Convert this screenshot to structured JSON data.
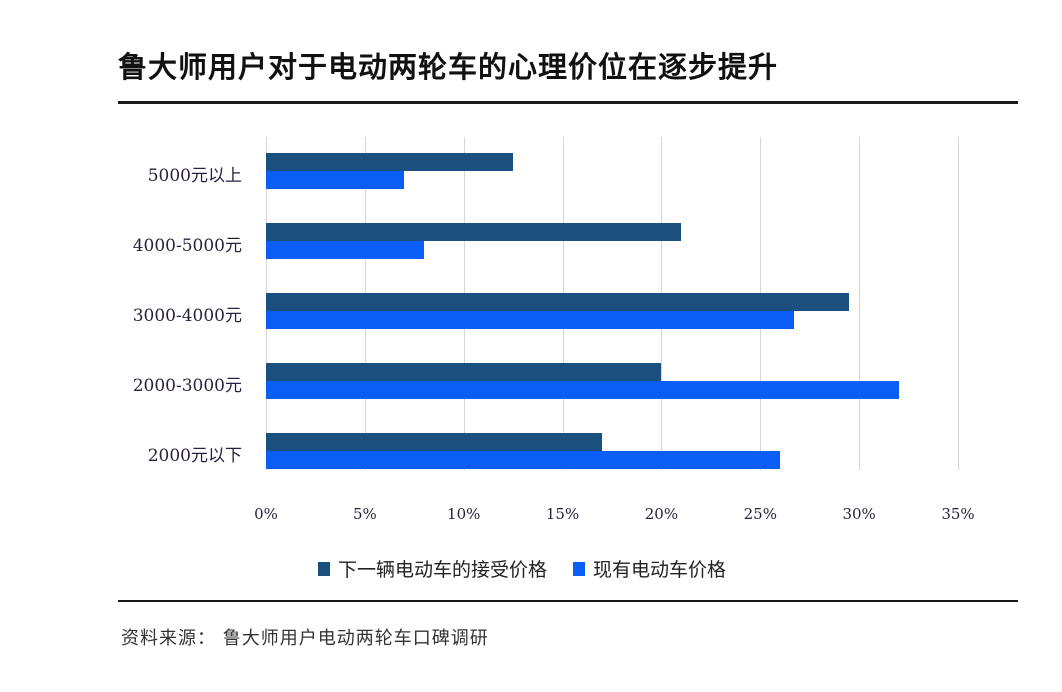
{
  "title": "鲁大师用户对于电动两轮车的心理价位在逐步提升",
  "source": "资料来源：  鲁大师用户电动两轮车口碑调研",
  "colors": {
    "series0": "#1b4f7e",
    "series1": "#0a5ef5",
    "grid": "#d4d6dc"
  },
  "chart_data": {
    "type": "bar",
    "orientation": "horizontal",
    "title": "鲁大师用户对于电动两轮车的心理价位在逐步提升",
    "categories": [
      "5000元以上",
      "4000-5000元",
      "3000-4000元",
      "2000-3000元",
      "2000元以下"
    ],
    "series": [
      {
        "name": "下一辆电动车的接受价格",
        "color": "#1b4f7e",
        "values": [
          12.5,
          21,
          29.5,
          20,
          17
        ]
      },
      {
        "name": "现有电动车价格",
        "color": "#0a5ef5",
        "values": [
          7,
          8,
          26.7,
          32,
          26
        ]
      }
    ],
    "xlabel": "",
    "ylabel": "",
    "xlim": [
      0,
      35
    ],
    "xticks": [
      "0%",
      "5%",
      "10%",
      "15%",
      "20%",
      "25%",
      "30%",
      "35%"
    ],
    "grid": true,
    "legend_position": "bottom",
    "source": "资料来源：  鲁大师用户电动两轮车口碑调研"
  }
}
